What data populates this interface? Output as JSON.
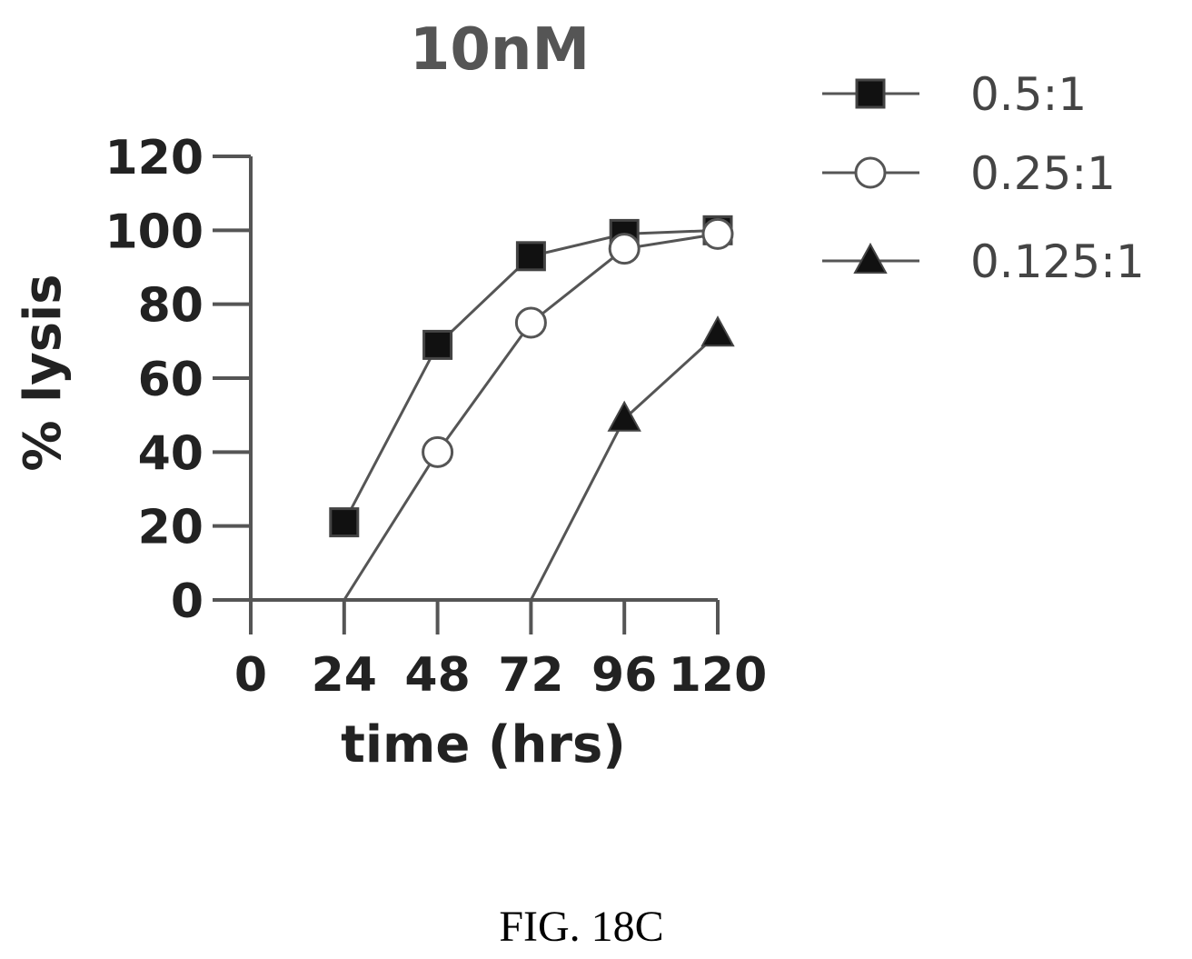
{
  "chart_data": {
    "type": "line",
    "title": "10nM",
    "xlabel": "time (hrs)",
    "ylabel": "% lysis",
    "x": [
      24,
      48,
      72,
      96,
      120
    ],
    "xticks": [
      0,
      24,
      48,
      72,
      96,
      120
    ],
    "yticks": [
      0,
      20,
      40,
      60,
      80,
      100,
      120
    ],
    "xlim": [
      0,
      120
    ],
    "ylim": [
      0,
      120
    ],
    "grid": false,
    "legend_position": "right",
    "series": [
      {
        "name": "0.5:1",
        "marker": "filled-square",
        "values": [
          21,
          69,
          93,
          99,
          100
        ]
      },
      {
        "name": "0.25:1",
        "marker": "open-circle",
        "values": [
          0,
          40,
          75,
          95,
          99
        ]
      },
      {
        "name": "0.125:1",
        "marker": "filled-triangle",
        "values": [
          null,
          null,
          0,
          49,
          72
        ]
      }
    ]
  },
  "caption": "FIG. 18C"
}
